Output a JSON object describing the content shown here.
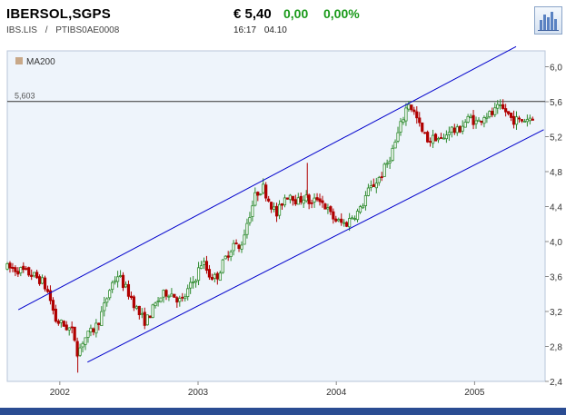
{
  "header": {
    "name": "IBERSOL,SGPS",
    "ticker": "IBS.LIS",
    "separator": "/",
    "isin": "PTIBS0AE0008",
    "price": "€ 5,40",
    "change": "0,00",
    "change_pct": "0,00%",
    "time": "16:17",
    "date": "04.10",
    "chart_button_icon": "bar-chart-icon"
  },
  "colors": {
    "up": "#2e8b2e",
    "down": "#b00000",
    "channel": "#0000cc",
    "ma_legend": "#c8a888",
    "plot_bg": "#eef4fb",
    "positive_text": "#1a9a1a"
  },
  "chart_data": {
    "type": "candlestick",
    "legend": [
      "MA200"
    ],
    "reference_line": {
      "value": 5.603,
      "label": "5,603"
    },
    "y_ticks": [
      "6,0",
      "5,6",
      "5,2",
      "4,8",
      "4,4",
      "4,0",
      "3,6",
      "3,2",
      "2,8",
      "2,4"
    ],
    "y_tick_values": [
      6.0,
      5.6,
      5.2,
      4.8,
      4.4,
      4.0,
      3.6,
      3.2,
      2.8,
      2.4
    ],
    "ylim": [
      2.4,
      6.0
    ],
    "x_ticks": [
      "2002",
      "2003",
      "2004",
      "2005"
    ],
    "x_tick_values": [
      2002.0,
      2003.0,
      2004.0,
      2005.0
    ],
    "xlim": [
      2001.62,
      2005.51
    ],
    "channel_upper": [
      [
        2001.7,
        3.22
      ],
      [
        2005.3,
        6.23
      ]
    ],
    "channel_lower": [
      [
        2002.2,
        2.62
      ],
      [
        2005.5,
        5.28
      ]
    ],
    "keypoints": [
      [
        2001.62,
        3.7
      ],
      [
        2001.72,
        3.67
      ],
      [
        2001.8,
        3.62
      ],
      [
        2001.87,
        3.55
      ],
      [
        2001.92,
        3.4
      ],
      [
        2001.97,
        3.1
      ],
      [
        2002.02,
        3.05
      ],
      [
        2002.07,
        3.0
      ],
      [
        2002.1,
        2.95
      ],
      [
        2002.13,
        2.72
      ],
      [
        2002.17,
        2.88
      ],
      [
        2002.22,
        2.95
      ],
      [
        2002.27,
        3.05
      ],
      [
        2002.32,
        3.25
      ],
      [
        2002.37,
        3.5
      ],
      [
        2002.42,
        3.62
      ],
      [
        2002.47,
        3.48
      ],
      [
        2002.52,
        3.35
      ],
      [
        2002.57,
        3.18
      ],
      [
        2002.62,
        3.08
      ],
      [
        2002.67,
        3.22
      ],
      [
        2002.72,
        3.35
      ],
      [
        2002.78,
        3.43
      ],
      [
        2002.83,
        3.38
      ],
      [
        2002.88,
        3.3
      ],
      [
        2002.93,
        3.45
      ],
      [
        2002.98,
        3.58
      ],
      [
        2003.03,
        3.78
      ],
      [
        2003.08,
        3.62
      ],
      [
        2003.13,
        3.58
      ],
      [
        2003.18,
        3.75
      ],
      [
        2003.22,
        3.88
      ],
      [
        2003.26,
        3.98
      ],
      [
        2003.3,
        3.9
      ],
      [
        2003.36,
        4.25
      ],
      [
        2003.42,
        4.55
      ],
      [
        2003.47,
        4.62
      ],
      [
        2003.52,
        4.45
      ],
      [
        2003.57,
        4.3
      ],
      [
        2003.62,
        4.5
      ],
      [
        2003.67,
        4.55
      ],
      [
        2003.72,
        4.45
      ],
      [
        2003.77,
        4.52
      ],
      [
        2003.82,
        4.42
      ],
      [
        2003.87,
        4.52
      ],
      [
        2003.92,
        4.4
      ],
      [
        2003.97,
        4.28
      ],
      [
        2004.02,
        4.22
      ],
      [
        2004.07,
        4.2
      ],
      [
        2004.12,
        4.3
      ],
      [
        2004.17,
        4.35
      ],
      [
        2004.22,
        4.55
      ],
      [
        2004.27,
        4.65
      ],
      [
        2004.32,
        4.75
      ],
      [
        2004.37,
        4.9
      ],
      [
        2004.42,
        5.1
      ],
      [
        2004.47,
        5.35
      ],
      [
        2004.52,
        5.6
      ],
      [
        2004.57,
        5.45
      ],
      [
        2004.62,
        5.25
      ],
      [
        2004.67,
        5.15
      ],
      [
        2004.72,
        5.2
      ],
      [
        2004.77,
        5.15
      ],
      [
        2004.82,
        5.3
      ],
      [
        2004.87,
        5.25
      ],
      [
        2004.92,
        5.35
      ],
      [
        2004.97,
        5.42
      ],
      [
        2005.02,
        5.35
      ],
      [
        2005.07,
        5.45
      ],
      [
        2005.12,
        5.45
      ],
      [
        2005.17,
        5.52
      ],
      [
        2005.22,
        5.5
      ],
      [
        2005.27,
        5.4
      ],
      [
        2005.32,
        5.38
      ],
      [
        2005.37,
        5.4
      ],
      [
        2005.42,
        5.43
      ]
    ]
  }
}
